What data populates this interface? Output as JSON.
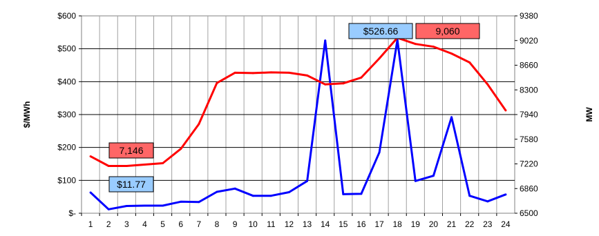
{
  "header_fragment": "",
  "colors": {
    "price": "#0000ff",
    "load": "#ff0000",
    "price_callout": "#99ccff",
    "load_callout": "#ff6666",
    "grid": "#a0a0a0",
    "plot_border": "#808080"
  },
  "chart_data": {
    "type": "line",
    "title": "",
    "xlabel": "",
    "ylabel_left": "$/MWh",
    "ylabel_right": "MW",
    "x": [
      1,
      2,
      3,
      4,
      5,
      6,
      7,
      8,
      9,
      10,
      11,
      12,
      13,
      14,
      15,
      16,
      17,
      18,
      19,
      20,
      21,
      22,
      23,
      24
    ],
    "y_left_lim": [
      0,
      600
    ],
    "y_left_ticks": [
      "$-",
      "$100",
      "$200",
      "$300",
      "$400",
      "$500",
      "$600"
    ],
    "y_right_lim": [
      6500,
      9380
    ],
    "y_right_ticks": [
      "6500",
      "6860",
      "7220",
      "7580",
      "7940",
      "8300",
      "8660",
      "9020",
      "9380"
    ],
    "grid": true,
    "series": [
      {
        "key": "price",
        "axis": "left",
        "values": [
          63,
          12,
          22,
          23,
          23,
          35,
          34,
          65,
          75,
          53,
          53,
          64,
          98,
          525,
          58,
          59,
          185,
          526.66,
          98,
          114,
          292,
          53,
          36,
          57
        ]
      },
      {
        "key": "load",
        "axis": "right",
        "values": [
          7330,
          7190,
          7190,
          7210,
          7230,
          7440,
          7800,
          8400,
          8550,
          8545,
          8555,
          8550,
          8510,
          8380,
          8395,
          8480,
          8760,
          9060,
          8970,
          8930,
          8830,
          8700,
          8380,
          8000
        ]
      }
    ],
    "annotations": [
      {
        "text": "$11.77",
        "series": "price",
        "style": "price"
      },
      {
        "text": "7,146",
        "series": "load",
        "style": "load"
      },
      {
        "text": "$526.66",
        "series": "price",
        "style": "price"
      },
      {
        "text": "9,060",
        "series": "load",
        "style": "load"
      }
    ]
  }
}
